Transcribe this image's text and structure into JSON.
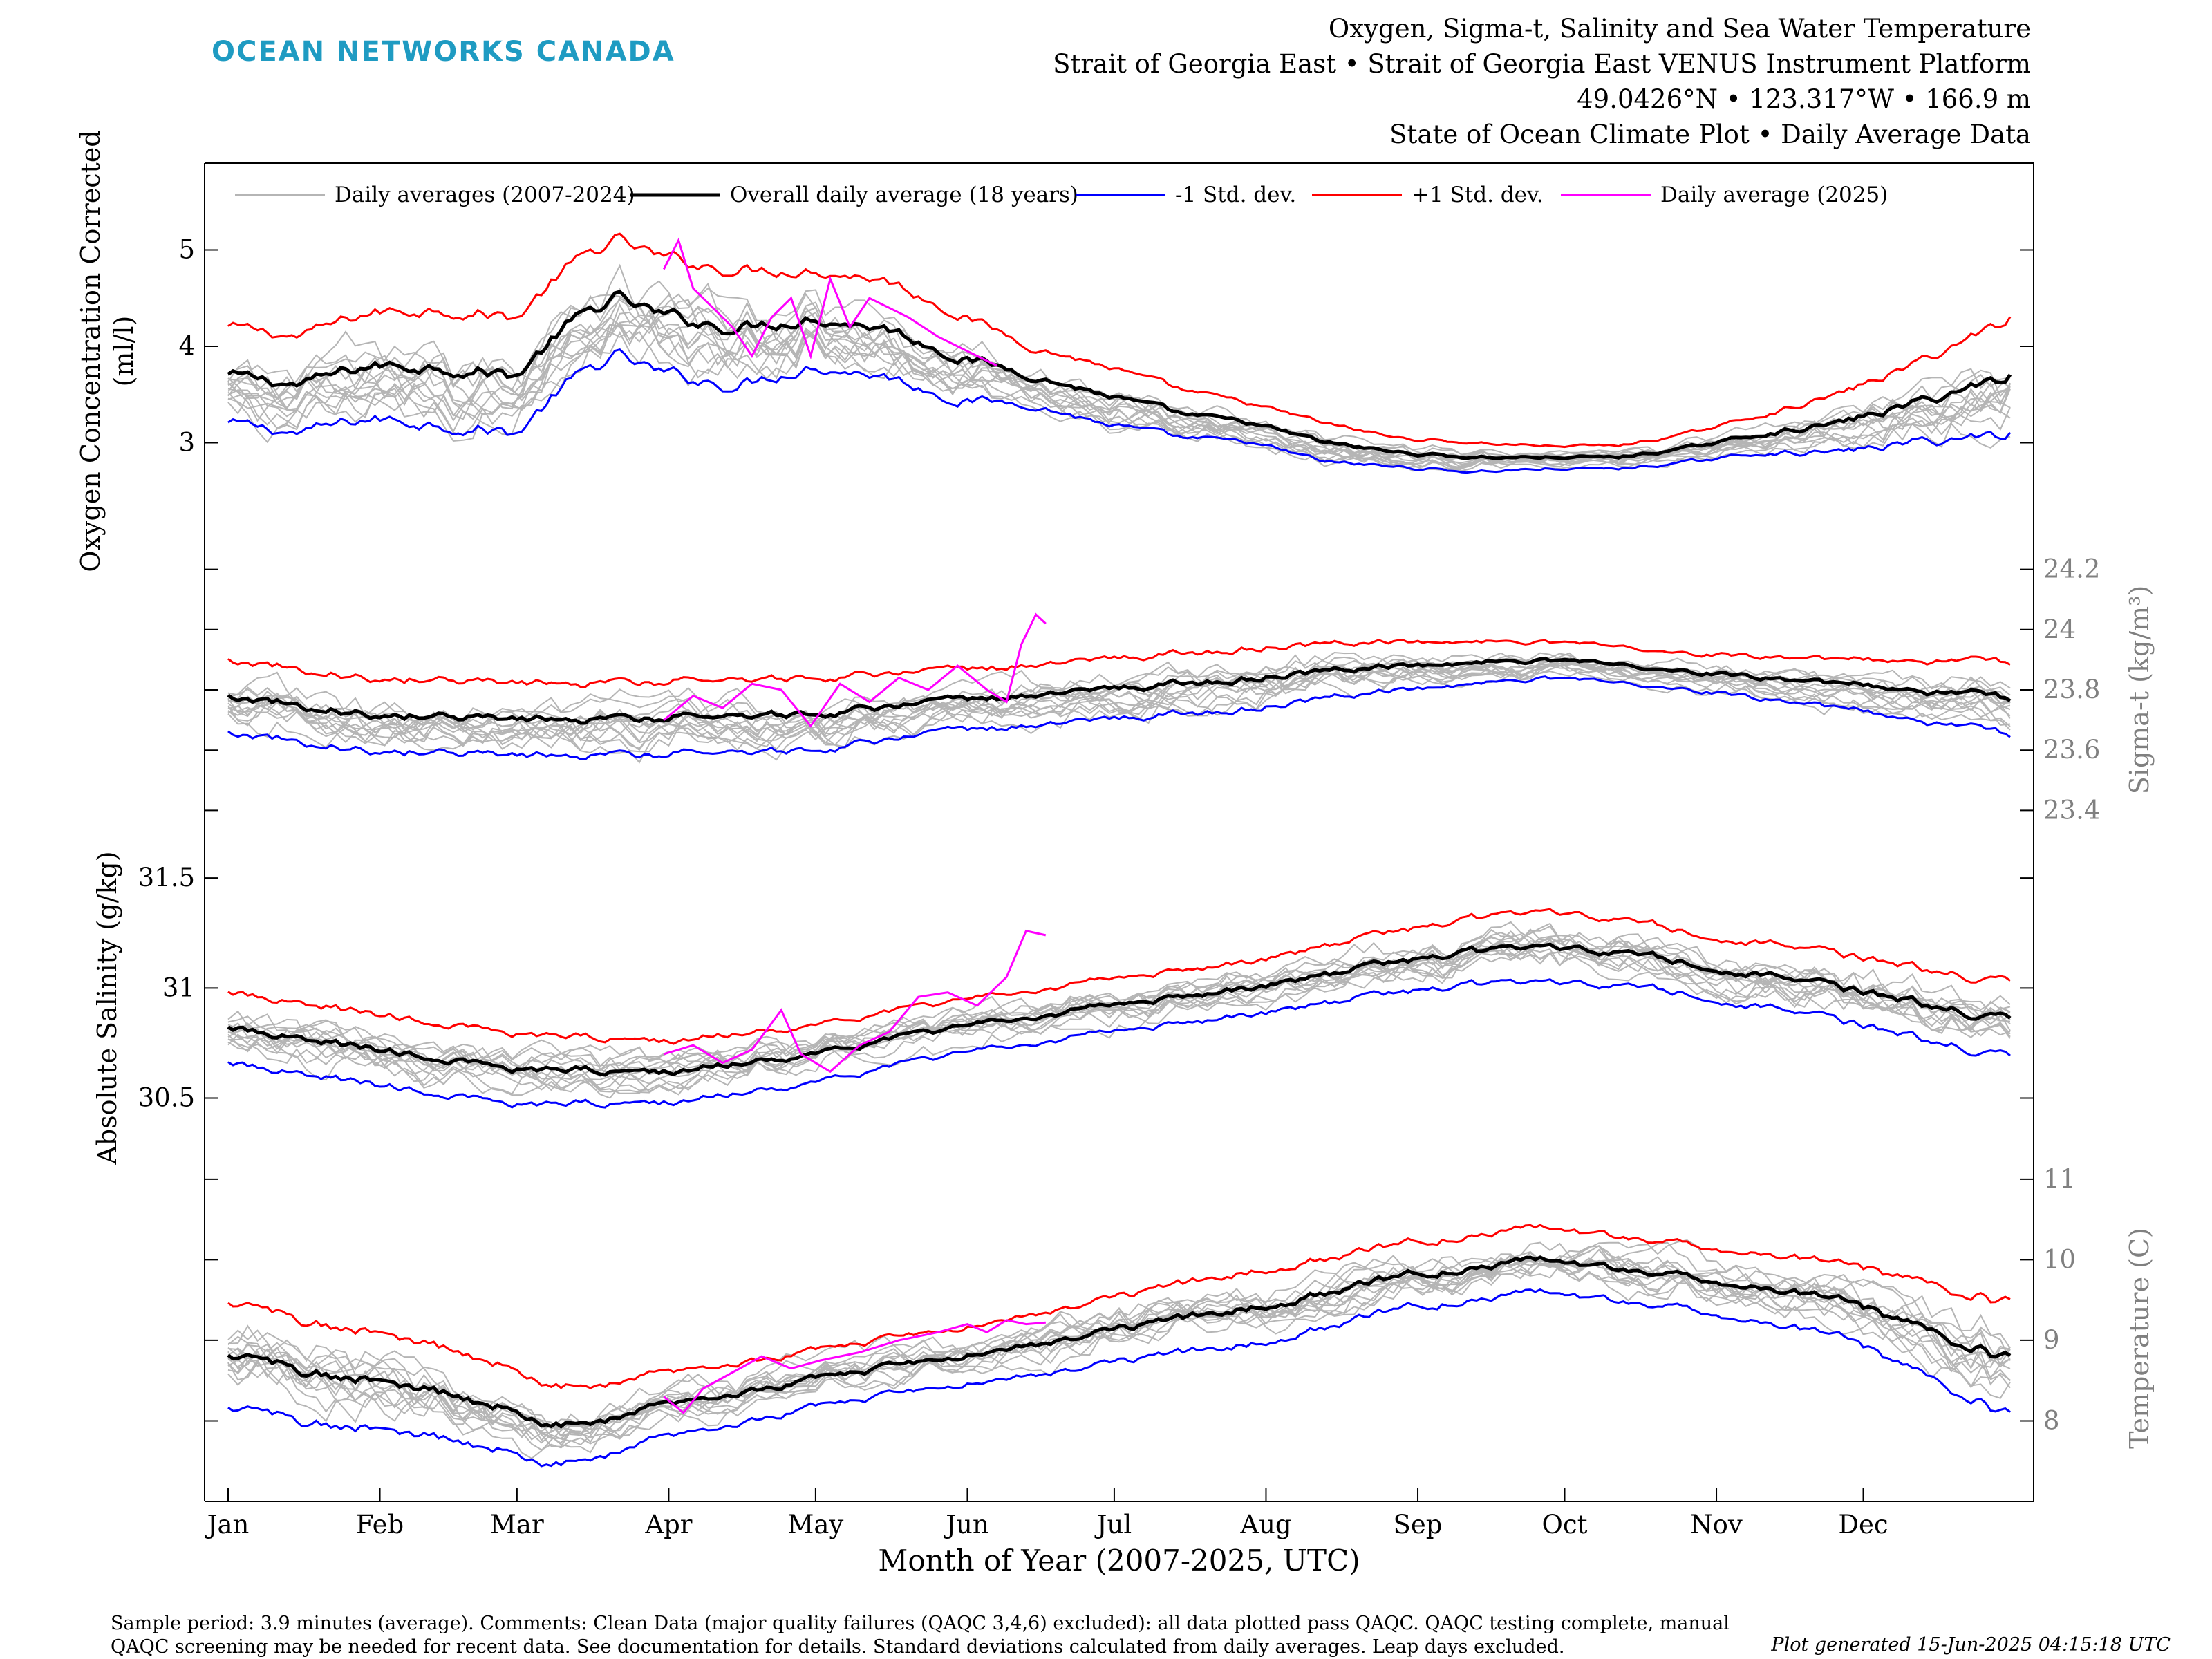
{
  "header": {
    "logo_text": "OCEAN NETWORKS CANADA",
    "title_lines": [
      "Oxygen, Sigma-t, Salinity and Sea Water Temperature",
      "Strait of Georgia East • Strait of Georgia East VENUS Instrument Platform",
      "49.0426°N • 123.317°W • 166.9 m",
      "State of Ocean Climate Plot • Daily Average Data"
    ]
  },
  "footer": {
    "note": "Sample period: 3.9 minutes (average). Comments: Clean Data (major quality failures (QAQC 3,4,6) excluded): all data plotted pass QAQC. QAQC testing complete, manual QAQC screening may be needed for recent data. See documentation for details. Standard deviations calculated from daily averages. Leap days excluded.",
    "generated": "Plot generated 15-Jun-2025 04:15:18 UTC"
  },
  "colors": {
    "daily": "#b5b5b5",
    "overall": "#000000",
    "minus_sd": "#0000ff",
    "plus_sd": "#ff0000",
    "year_2025": "#ff00ff",
    "right_axis_text": "#808080",
    "logo": "#1f9bc2"
  },
  "chart_data": {
    "type": "line",
    "xlabel": "Month of Year (2007-2025, UTC)",
    "x_ticks": [
      "Jan",
      "Feb",
      "Mar",
      "Apr",
      "May",
      "Jun",
      "Jul",
      "Aug",
      "Sep",
      "Oct",
      "Nov",
      "Dec"
    ],
    "x_range_days": [
      1,
      365
    ],
    "legend": {
      "placement": "top",
      "entries": [
        "Daily averages (2007-2024)",
        "Overall daily average (18 years)",
        "-1 Std. dev.",
        "+1 Std. dev.",
        "Daily average (2025)"
      ]
    },
    "panels": [
      {
        "name": "oxygen",
        "ylabel": "Oxygen Concentration Corrected (ml/l)",
        "ylabel_lines": [
          "Oxygen Concentration Corrected",
          "(ml/l)"
        ],
        "axis_side": "left",
        "ylim": [
          2.0,
          5.9
        ],
        "ticks": [
          3,
          4,
          5
        ],
        "tick_labels": [
          "3",
          "4",
          "5"
        ],
        "mean": [
          [
            1,
            3.7
          ],
          [
            15,
            3.6
          ],
          [
            30,
            3.8
          ],
          [
            45,
            3.8
          ],
          [
            60,
            3.7
          ],
          [
            70,
            4.2
          ],
          [
            80,
            4.5
          ],
          [
            90,
            4.3
          ],
          [
            105,
            4.2
          ],
          [
            120,
            4.3
          ],
          [
            135,
            4.2
          ],
          [
            150,
            3.9
          ],
          [
            165,
            3.7
          ],
          [
            180,
            3.5
          ],
          [
            195,
            3.3
          ],
          [
            210,
            3.2
          ],
          [
            225,
            3.0
          ],
          [
            240,
            2.9
          ],
          [
            255,
            2.85
          ],
          [
            270,
            2.85
          ],
          [
            285,
            2.85
          ],
          [
            300,
            2.95
          ],
          [
            315,
            3.1
          ],
          [
            330,
            3.2
          ],
          [
            345,
            3.4
          ],
          [
            365,
            3.7
          ]
        ],
        "sd": [
          0.5,
          0.5,
          0.55,
          0.6,
          0.6,
          0.6,
          0.6,
          0.6,
          0.6,
          0.5,
          0.5,
          0.45,
          0.3,
          0.3,
          0.25,
          0.2,
          0.2,
          0.15,
          0.15,
          0.12,
          0.12,
          0.15,
          0.2,
          0.3,
          0.4,
          0.6
        ],
        "year_2025_x": [
          [
            90,
            4.8
          ],
          [
            93,
            5.1
          ],
          [
            96,
            4.6
          ],
          [
            100,
            4.4
          ],
          [
            104,
            4.2
          ],
          [
            108,
            3.9
          ],
          [
            112,
            4.3
          ],
          [
            116,
            4.5
          ],
          [
            120,
            3.9
          ],
          [
            124,
            4.7
          ],
          [
            128,
            4.2
          ],
          [
            132,
            4.5
          ],
          [
            136,
            4.4
          ],
          [
            140,
            4.3
          ],
          [
            146,
            4.1
          ],
          [
            152,
            3.95
          ],
          [
            158,
            3.8
          ]
        ]
      },
      {
        "name": "sigma_t",
        "ylabel": "Sigma-t (kg/m³)",
        "ylabel_lines": [
          "Sigma-t (kg/m³)"
        ],
        "axis_side": "right",
        "ylim": [
          23.3,
          24.3
        ],
        "ticks": [
          23.4,
          23.6,
          23.8,
          24.0,
          24.2
        ],
        "tick_labels": [
          "23.4",
          "23.6",
          "23.8",
          "24",
          "24.2"
        ],
        "mean": [
          [
            1,
            23.78
          ],
          [
            30,
            23.72
          ],
          [
            60,
            23.7
          ],
          [
            90,
            23.71
          ],
          [
            120,
            23.72
          ],
          [
            150,
            23.76
          ],
          [
            180,
            23.8
          ],
          [
            210,
            23.84
          ],
          [
            240,
            23.88
          ],
          [
            270,
            23.9
          ],
          [
            300,
            23.86
          ],
          [
            330,
            23.82
          ],
          [
            365,
            23.77
          ]
        ],
        "sd": [
          0.12,
          0.12,
          0.12,
          0.12,
          0.12,
          0.1,
          0.1,
          0.1,
          0.08,
          0.06,
          0.06,
          0.08,
          0.12
        ],
        "year_2025_x": [
          [
            90,
            23.7
          ],
          [
            96,
            23.78
          ],
          [
            102,
            23.74
          ],
          [
            108,
            23.82
          ],
          [
            114,
            23.8
          ],
          [
            120,
            23.68
          ],
          [
            126,
            23.82
          ],
          [
            132,
            23.76
          ],
          [
            138,
            23.84
          ],
          [
            144,
            23.8
          ],
          [
            150,
            23.88
          ],
          [
            156,
            23.8
          ],
          [
            160,
            23.76
          ],
          [
            163,
            23.95
          ],
          [
            166,
            24.05
          ],
          [
            168,
            24.02
          ]
        ]
      },
      {
        "name": "salinity",
        "ylabel": "Absolute Salinity (g/kg)",
        "ylabel_lines": [
          "Absolute Salinity (g/kg)"
        ],
        "axis_side": "left",
        "ylim": [
          30.15,
          31.67
        ],
        "ticks": [
          30.5,
          31.0,
          31.5
        ],
        "tick_labels": [
          "30.5",
          "31",
          "31.5"
        ],
        "mean": [
          [
            1,
            30.82
          ],
          [
            30,
            30.72
          ],
          [
            60,
            30.63
          ],
          [
            90,
            30.62
          ],
          [
            120,
            30.7
          ],
          [
            150,
            30.82
          ],
          [
            180,
            30.92
          ],
          [
            210,
            31.0
          ],
          [
            240,
            31.12
          ],
          [
            270,
            31.2
          ],
          [
            300,
            31.12
          ],
          [
            330,
            31.0
          ],
          [
            365,
            30.85
          ]
        ],
        "sd": [
          0.16,
          0.16,
          0.16,
          0.14,
          0.13,
          0.12,
          0.12,
          0.12,
          0.14,
          0.16,
          0.14,
          0.15,
          0.17
        ],
        "year_2025_x": [
          [
            90,
            30.7
          ],
          [
            96,
            30.74
          ],
          [
            102,
            30.66
          ],
          [
            108,
            30.72
          ],
          [
            114,
            30.9
          ],
          [
            118,
            30.7
          ],
          [
            124,
            30.62
          ],
          [
            130,
            30.74
          ],
          [
            136,
            30.8
          ],
          [
            142,
            30.96
          ],
          [
            148,
            30.98
          ],
          [
            154,
            30.92
          ],
          [
            160,
            31.05
          ],
          [
            164,
            31.26
          ],
          [
            168,
            31.24
          ]
        ]
      },
      {
        "name": "temperature",
        "ylabel": "Temperature (C)",
        "ylabel_lines": [
          "Temperature (C)"
        ],
        "axis_side": "right",
        "ylim": [
          7.0,
          11.05
        ],
        "ticks": [
          8,
          9,
          10,
          11
        ],
        "tick_labels": [
          "8",
          "9",
          "10",
          "11"
        ],
        "mean": [
          [
            1,
            8.8
          ],
          [
            30,
            8.5
          ],
          [
            50,
            8.3
          ],
          [
            65,
            8.0
          ],
          [
            75,
            7.95
          ],
          [
            90,
            8.2
          ],
          [
            120,
            8.5
          ],
          [
            150,
            8.8
          ],
          [
            180,
            9.1
          ],
          [
            210,
            9.4
          ],
          [
            240,
            9.8
          ],
          [
            270,
            10.0
          ],
          [
            300,
            9.8
          ],
          [
            330,
            9.5
          ],
          [
            365,
            8.75
          ]
        ],
        "sd": [
          0.65,
          0.6,
          0.55,
          0.5,
          0.45,
          0.4,
          0.35,
          0.35,
          0.4,
          0.45,
          0.4,
          0.4,
          0.4,
          0.45,
          0.7
        ],
        "year_2025_x": [
          [
            90,
            8.3
          ],
          [
            94,
            8.1
          ],
          [
            98,
            8.4
          ],
          [
            104,
            8.6
          ],
          [
            110,
            8.8
          ],
          [
            116,
            8.65
          ],
          [
            122,
            8.75
          ],
          [
            130,
            8.85
          ],
          [
            138,
            9.0
          ],
          [
            146,
            9.1
          ],
          [
            152,
            9.2
          ],
          [
            156,
            9.1
          ],
          [
            160,
            9.25
          ],
          [
            164,
            9.2
          ],
          [
            168,
            9.22
          ]
        ]
      }
    ]
  }
}
